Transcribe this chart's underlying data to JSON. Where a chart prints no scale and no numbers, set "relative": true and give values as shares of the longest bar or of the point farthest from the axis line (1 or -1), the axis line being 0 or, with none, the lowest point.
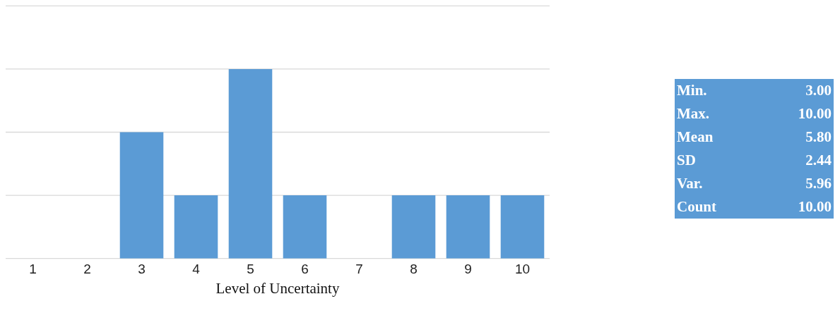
{
  "chart_data": [
    {
      "type": "bar",
      "xlabel": "Level of Uncertainty",
      "relative": true,
      "categories": [
        "1",
        "2",
        "3",
        "4",
        "5",
        "6",
        "7",
        "8",
        "9",
        "10"
      ],
      "values": [
        0,
        0,
        0.6667,
        0.3333,
        1,
        0.3333,
        0,
        0.3333,
        0.3333,
        0.3333
      ],
      "color": "#5b9bd5",
      "tick_labels": "x",
      "ref_lines": [
        {
          "axis": "y",
          "value": 0,
          "color": "#d9d9d9"
        },
        {
          "axis": "y",
          "value": 0.3333,
          "color": "#d9d9d9"
        },
        {
          "axis": "y",
          "value": 0.6667,
          "color": "#d9d9d9"
        },
        {
          "axis": "y",
          "value": 1,
          "color": "#d9d9d9"
        },
        {
          "axis": "y",
          "value": 1.3333,
          "color": "#d9d9d9"
        }
      ]
    },
    {
      "type": "other",
      "annotations": [
        "Min.",
        "3.00",
        "Max.",
        "10.00",
        "Mean",
        "5.80",
        "SD",
        "2.44",
        "Var.",
        "5.96",
        "Count",
        "10.00"
      ]
    }
  ]
}
